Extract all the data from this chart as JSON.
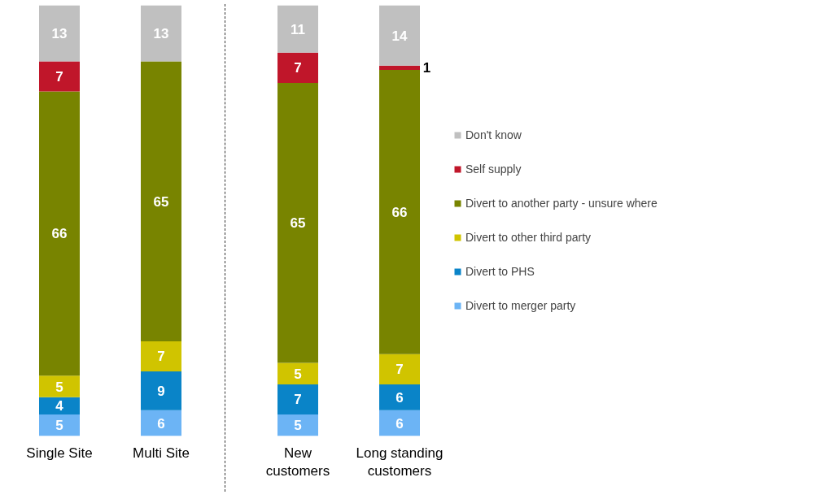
{
  "chart_data": [
    {
      "type": "bar",
      "stacked": true,
      "data_labels": true,
      "tick_labels": "x",
      "grid": false,
      "ylim": [
        0,
        100
      ],
      "categories": [
        "Single Site",
        "Multi Site"
      ],
      "series": [
        {
          "color": "#6cb4f5",
          "values": [
            5,
            6
          ]
        },
        {
          "color": "#0a84c8",
          "values": [
            4,
            9
          ]
        },
        {
          "color": "#d0c400",
          "values": [
            5,
            7
          ]
        },
        {
          "color": "#788400",
          "values": [
            66,
            65
          ]
        },
        {
          "color": "#c0162a",
          "values": [
            7,
            null
          ]
        },
        {
          "color": "#c0c0c0",
          "values": [
            13,
            13
          ]
        }
      ]
    },
    {
      "type": "bar",
      "stacked": true,
      "data_labels": true,
      "tick_labels": "x",
      "grid": false,
      "ylim": [
        0,
        100
      ],
      "legend": "right",
      "categories": [
        "New customers",
        "Long standing customers"
      ],
      "series": [
        {
          "name": "Divert to merger party",
          "color": "#6cb4f5",
          "values": [
            5,
            6
          ]
        },
        {
          "name": "Divert to PHS",
          "color": "#0a84c8",
          "values": [
            7,
            6
          ]
        },
        {
          "name": "Divert to other third party",
          "color": "#d0c400",
          "values": [
            5,
            7
          ]
        },
        {
          "name": "Divert to another party - unsure where",
          "color": "#788400",
          "values": [
            65,
            66
          ]
        },
        {
          "name": "Self supply",
          "color": "#c0162a",
          "values": [
            7,
            1
          ]
        },
        {
          "name": "Don't know",
          "color": "#c0c0c0",
          "values": [
            11,
            14
          ]
        }
      ]
    }
  ]
}
